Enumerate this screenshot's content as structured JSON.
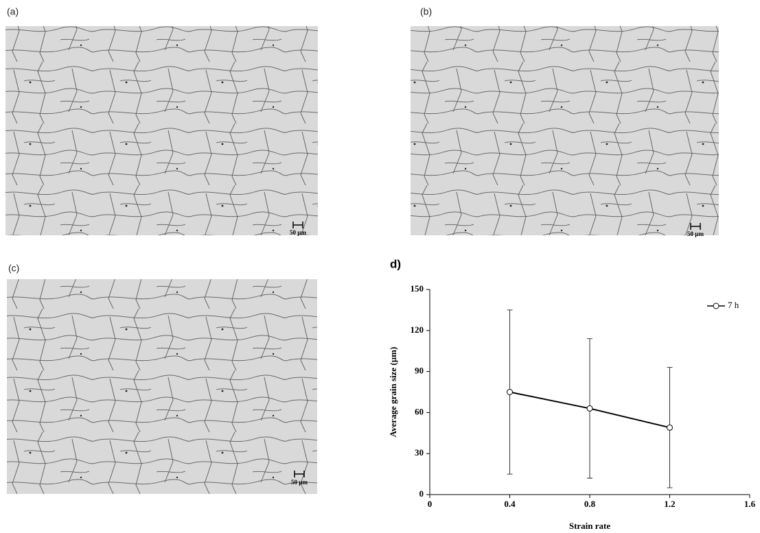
{
  "panels": [
    {
      "label": "(a)",
      "scale_bar": "50 µm"
    },
    {
      "label": "(b)",
      "scale_bar": "50 µm"
    },
    {
      "label": "(c)",
      "scale_bar": "50 µm"
    }
  ],
  "chart_data": {
    "type": "line",
    "panel_label": "d)",
    "x_label": "Strain rate",
    "y_label": "Average grain size (µm)",
    "x": [
      0.4,
      0.8,
      1.2
    ],
    "series": [
      {
        "name": "7 h",
        "color": "#000000",
        "values": [
          75,
          63,
          49
        ],
        "errors": [
          60,
          51,
          44
        ]
      }
    ],
    "xlim": [
      0,
      1.6
    ],
    "xticks": [
      0,
      0.4,
      0.8,
      1.2,
      1.6
    ],
    "ylim": [
      0,
      150
    ],
    "yticks": [
      0,
      30,
      60,
      90,
      120,
      150
    ],
    "legend": "upper right",
    "grid": false
  }
}
